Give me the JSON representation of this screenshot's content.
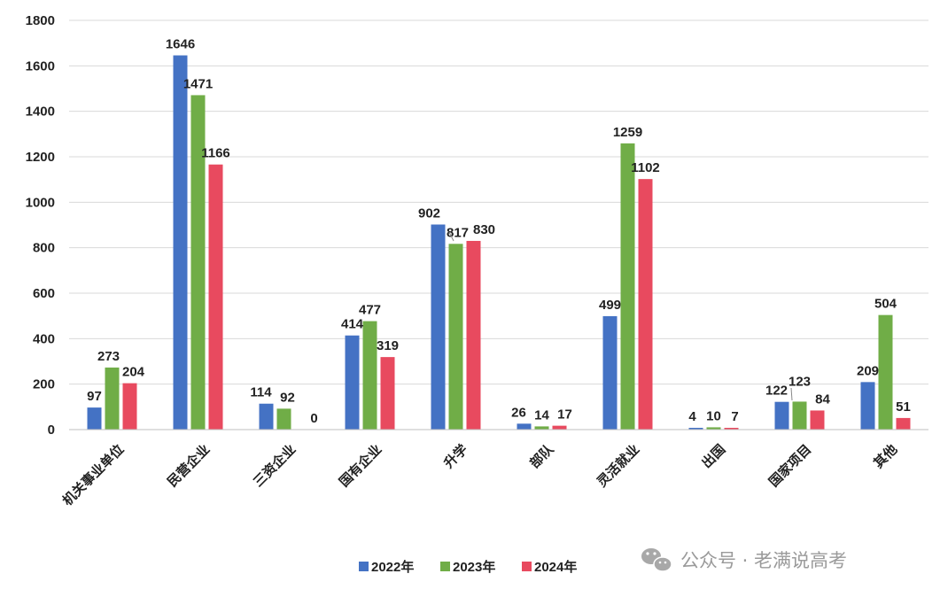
{
  "chart_data": {
    "type": "bar",
    "title": "",
    "xlabel": "",
    "ylabel": "",
    "ylim": [
      0,
      1800
    ],
    "yticks": [
      0,
      200,
      400,
      600,
      800,
      1000,
      1200,
      1400,
      1600,
      1800
    ],
    "grid": true,
    "legend_position": "bottom-center",
    "categories": [
      "机关事业单位",
      "民营企业",
      "三资企业",
      "国有企业",
      "升学",
      "部队",
      "灵活就业",
      "出国",
      "国家项目",
      "其他"
    ],
    "series": [
      {
        "name": "2022年",
        "color": "#4472c4",
        "values": [
          97,
          1646,
          114,
          414,
          902,
          26,
          499,
          4,
          122,
          209
        ]
      },
      {
        "name": "2023年",
        "color": "#70ad47",
        "values": [
          273,
          1471,
          92,
          477,
          817,
          14,
          1259,
          10,
          123,
          504
        ]
      },
      {
        "name": "2024年",
        "color": "#e84a5f",
        "values": [
          204,
          1166,
          0,
          319,
          830,
          17,
          1102,
          7,
          84,
          51
        ]
      }
    ]
  },
  "watermark": {
    "text": "公众号 · 老满说高考",
    "icon": "wechat-icon"
  }
}
